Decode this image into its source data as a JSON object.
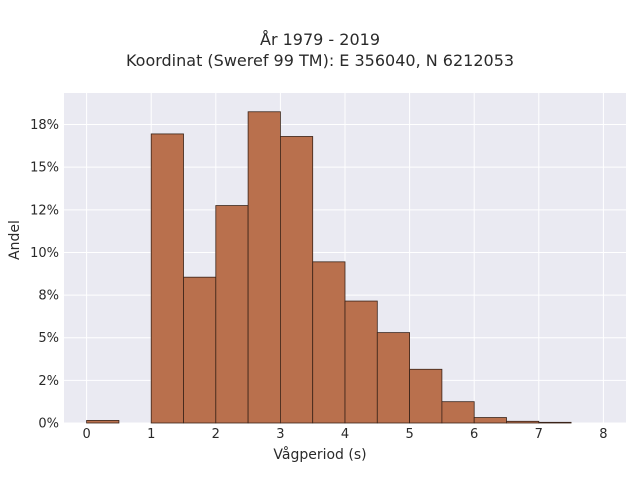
{
  "chart_data": {
    "type": "bar",
    "title": "År 1979 - 2019",
    "subtitle": "Koordinat (Sweref 99 TM): E 356040, N 6212053",
    "xlabel": "Vågperiod (s)",
    "ylabel": "Andel",
    "xlim": [
      -0.35,
      8.35
    ],
    "ylim": [
      0,
      0.1935
    ],
    "x_ticks": [
      "0",
      "1",
      "2",
      "3",
      "4",
      "5",
      "6",
      "7",
      "8"
    ],
    "y_ticks": [
      "0%",
      "2%",
      "5%",
      "8%",
      "10%",
      "12%",
      "15%",
      "18%"
    ],
    "y_tick_values": [
      0,
      0.025,
      0.05,
      0.075,
      0.1,
      0.125,
      0.15,
      0.175
    ],
    "bin_width": 0.5,
    "bins": [
      {
        "x0": 0.0,
        "value": 0.0015
      },
      {
        "x0": 0.5,
        "value": 0.0
      },
      {
        "x0": 1.0,
        "value": 0.1695
      },
      {
        "x0": 1.5,
        "value": 0.0855
      },
      {
        "x0": 2.0,
        "value": 0.1275
      },
      {
        "x0": 2.5,
        "value": 0.1825
      },
      {
        "x0": 3.0,
        "value": 0.168
      },
      {
        "x0": 3.5,
        "value": 0.0945
      },
      {
        "x0": 4.0,
        "value": 0.0715
      },
      {
        "x0": 4.5,
        "value": 0.053
      },
      {
        "x0": 5.0,
        "value": 0.0315
      },
      {
        "x0": 5.5,
        "value": 0.0125
      },
      {
        "x0": 6.0,
        "value": 0.0032
      },
      {
        "x0": 6.5,
        "value": 0.001
      },
      {
        "x0": 7.0,
        "value": 0.0004
      },
      {
        "x0": 7.5,
        "value": 0.0
      }
    ],
    "colors": {
      "bar_fill": "#b9704d",
      "bar_edge": "#3a2318",
      "plot_background": "#eaeaf2",
      "grid": "#ffffff"
    },
    "grid": true,
    "legend": "none"
  }
}
